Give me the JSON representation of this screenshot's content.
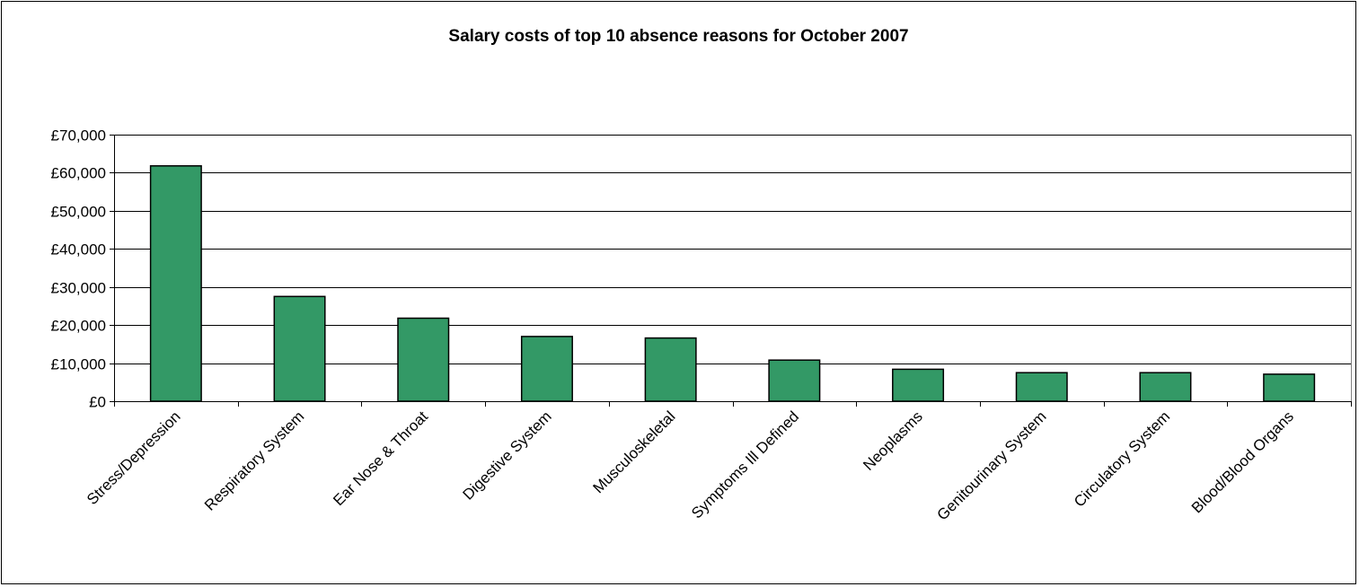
{
  "chart_data": {
    "type": "bar",
    "title": "Salary costs of top 10 absence reasons for October 2007",
    "xlabel": "",
    "ylabel": "",
    "categories": [
      "Stress/Depression",
      "Respiratory System",
      "Ear Nose & Throat",
      "Digestive System",
      "Musculoskeletal",
      "Symptoms Ill Defined",
      "Neoplasms",
      "Genitourinary System",
      "Circulatory System",
      "Blood/Blood Organs"
    ],
    "values": [
      61800,
      27500,
      21800,
      17000,
      16600,
      10800,
      8400,
      7500,
      7500,
      7100
    ],
    "ylim": [
      0,
      70000
    ],
    "yticks": [
      0,
      10000,
      20000,
      30000,
      40000,
      50000,
      60000,
      70000
    ],
    "ytick_labels": [
      "£0",
      "£10,000",
      "£20,000",
      "£30,000",
      "£40,000",
      "£50,000",
      "£60,000",
      "£70,000"
    ],
    "grid": true,
    "legend": "none",
    "bar_color": "#339966",
    "bar_edge_color": "#000000"
  }
}
